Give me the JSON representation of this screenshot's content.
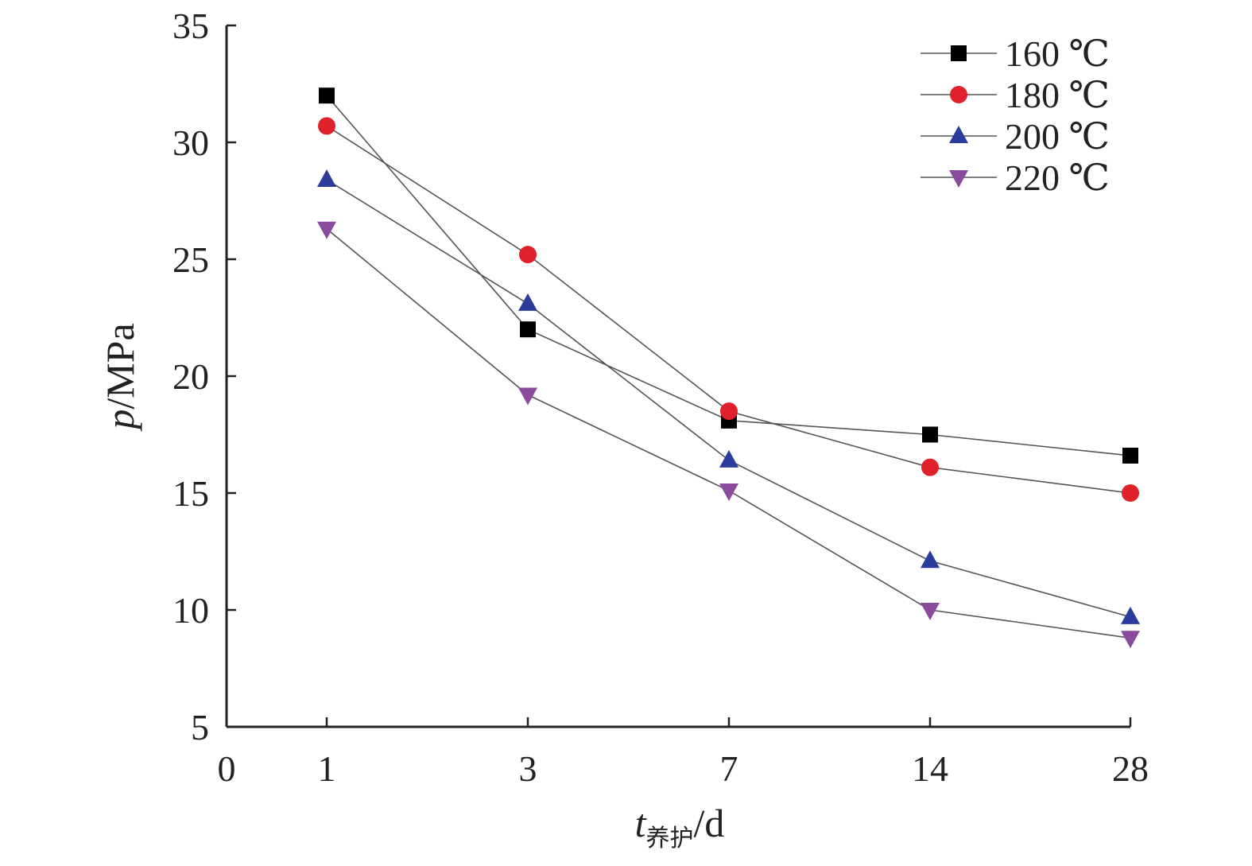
{
  "chart_data": {
    "type": "line",
    "categories": [
      "1",
      "3",
      "7",
      "14",
      "28"
    ],
    "x_origin_label": "0",
    "xlabel": {
      "var": "t",
      "sub": "养护",
      "unit": "/d"
    },
    "ylabel": {
      "var": "p",
      "unit": "/MPa"
    },
    "ylim": [
      5,
      35
    ],
    "yticks": [
      5,
      10,
      15,
      20,
      25,
      30,
      35
    ],
    "grid": false,
    "legend": "top-right",
    "series": [
      {
        "name": "160 ℃",
        "marker": "square",
        "color": "#000000",
        "values": [
          32.0,
          22.0,
          18.1,
          17.5,
          16.6
        ]
      },
      {
        "name": "180 ℃",
        "marker": "circle",
        "color": "#e0202a",
        "values": [
          30.7,
          25.2,
          18.5,
          16.1,
          15.0
        ]
      },
      {
        "name": "200 ℃",
        "marker": "triangle-up",
        "color": "#2b3c9c",
        "values": [
          28.4,
          23.1,
          16.4,
          12.1,
          9.7
        ]
      },
      {
        "name": "220 ℃",
        "marker": "triangle-down",
        "color": "#8a4a9e",
        "values": [
          26.3,
          19.2,
          15.1,
          10.0,
          8.8
        ]
      }
    ]
  }
}
